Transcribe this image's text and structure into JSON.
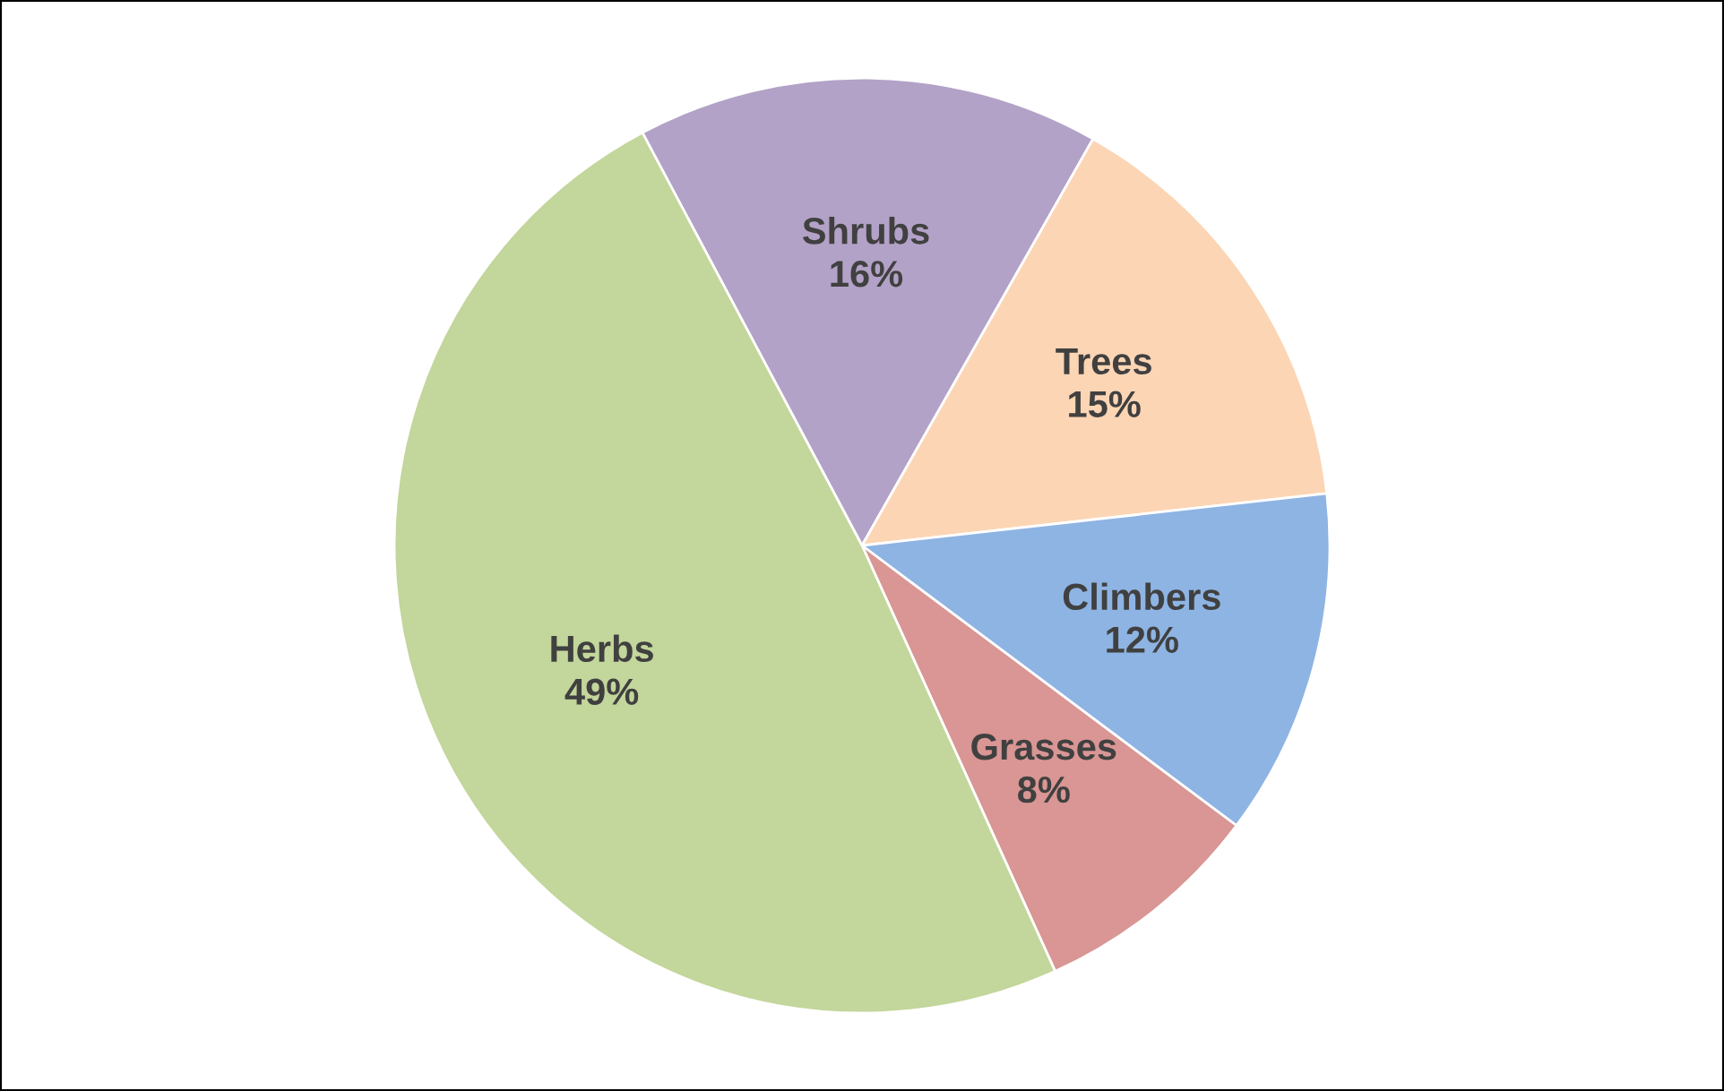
{
  "chart_data": {
    "type": "pie",
    "categories": [
      "Shrubs",
      "Trees",
      "Climbers",
      "Grasses",
      "Herbs"
    ],
    "values": [
      16,
      15,
      12,
      8,
      49
    ],
    "value_labels": [
      "16%",
      "15%",
      "12%",
      "8%",
      "49%"
    ],
    "colors": [
      "#b3a2c7",
      "#fcd5b5",
      "#8eb4e3",
      "#d99694",
      "#c3d69b"
    ],
    "legend": false
  }
}
